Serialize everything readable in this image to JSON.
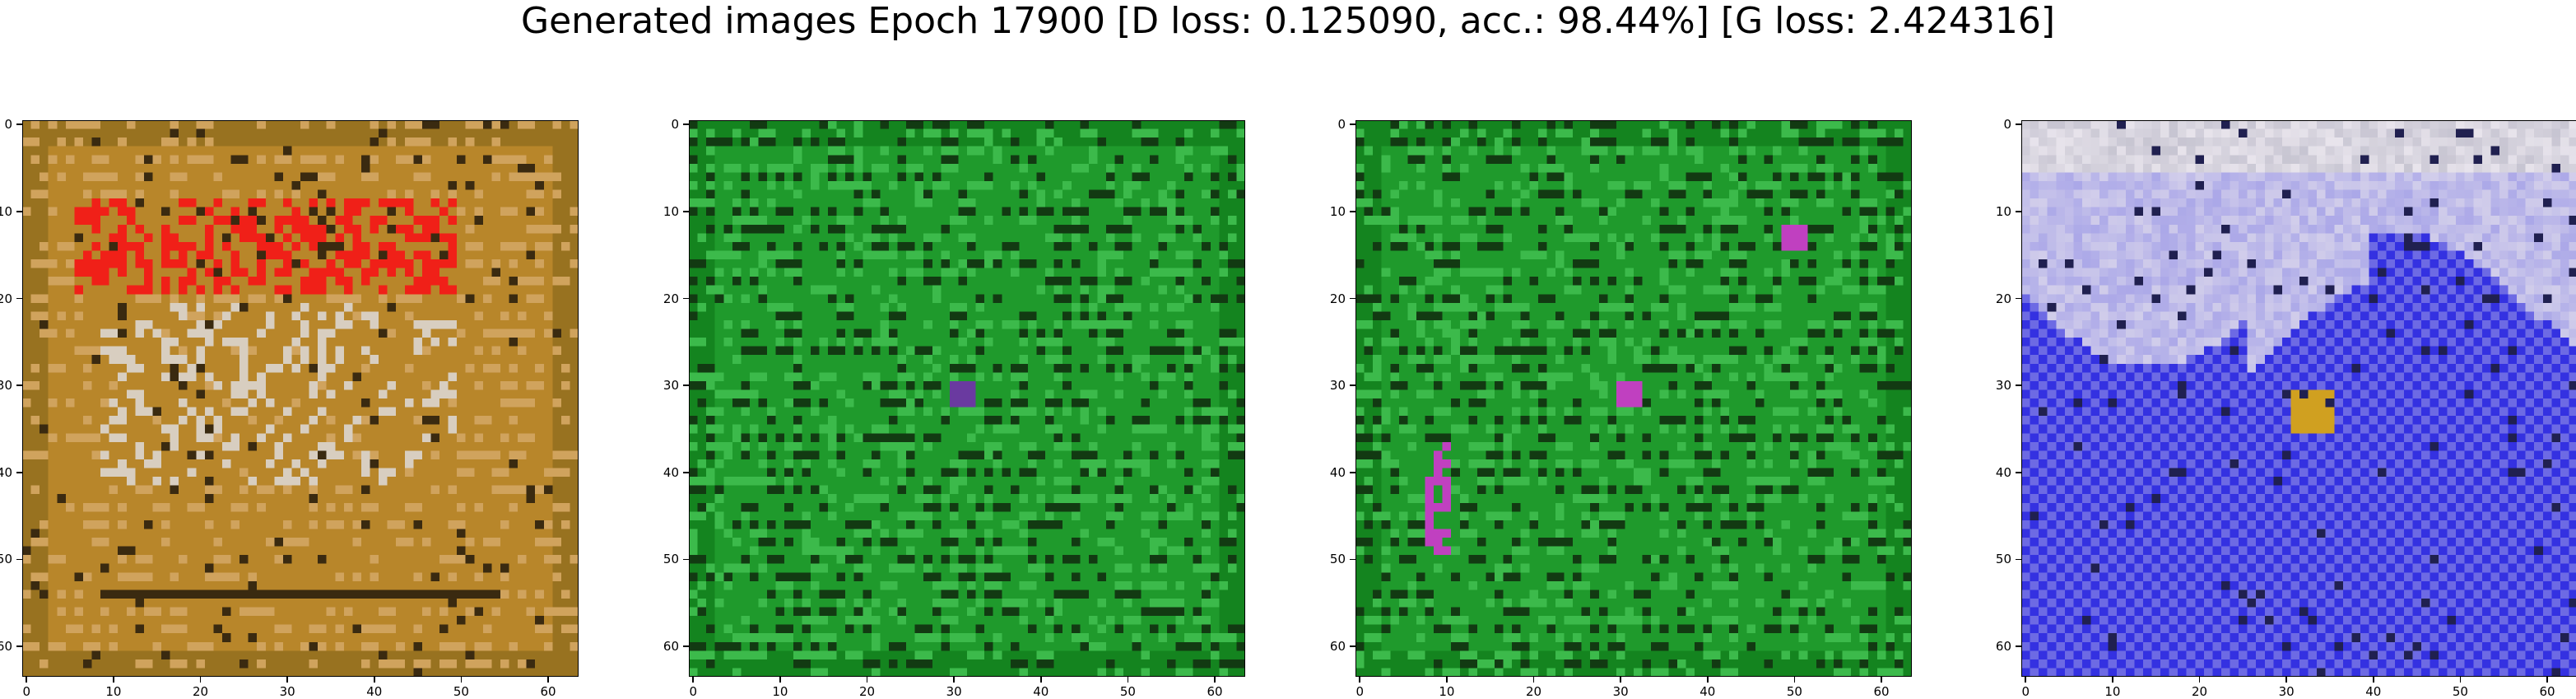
{
  "figure": {
    "title": "Generated images Epoch 17900 [D loss: 0.125090, acc.: 98.44%] [G loss: 2.424316]"
  },
  "chart_data": [
    {
      "type": "heatmap",
      "description": "generated image 1 (orange/brown with red blotches)",
      "palette": {
        "base": "#b8862a",
        "border": "#8a6a1c",
        "accent": "#f02018",
        "light": "#e8c090",
        "dark": "#3a2a10"
      },
      "xlim": [
        -0.5,
        63.5
      ],
      "ylim": [
        63.5,
        -0.5
      ],
      "xticks": [
        0,
        10,
        20,
        30,
        40,
        50,
        60
      ],
      "yticks": [
        0,
        10,
        20,
        30,
        40,
        50,
        60
      ],
      "grid": false
    },
    {
      "type": "heatmap",
      "description": "generated image 2 (green with dark horizontal streaks)",
      "palette": {
        "base": "#1f9a2c",
        "border": "#0f7a1a",
        "accent": "#6a3aa0",
        "light": "#50d060",
        "dark": "#123a12"
      },
      "xlim": [
        -0.5,
        63.5
      ],
      "ylim": [
        63.5,
        -0.5
      ],
      "xticks": [
        0,
        10,
        20,
        30,
        40,
        50,
        60
      ],
      "yticks": [
        0,
        10,
        20,
        30,
        40,
        50,
        60
      ],
      "grid": false
    },
    {
      "type": "heatmap",
      "description": "generated image 3 (green with dark streaks, magenta spots)",
      "palette": {
        "base": "#1f9a2c",
        "border": "#0f7a1a",
        "accent": "#c040c0",
        "light": "#50d060",
        "dark": "#123a12"
      },
      "xlim": [
        -0.5,
        63.5
      ],
      "ylim": [
        63.5,
        -0.5
      ],
      "xticks": [
        0,
        10,
        20,
        30,
        40,
        50,
        60
      ],
      "yticks": [
        0,
        10,
        20,
        30,
        40,
        50,
        60
      ],
      "grid": false
    },
    {
      "type": "heatmap",
      "description": "generated image 4 (white/grey top, blue bottom)",
      "palette": {
        "base": "#2a28e0",
        "border": "#5a58d0",
        "accent": "#d0a020",
        "light": "#e8e4ec",
        "dark": "#202050"
      },
      "xlim": [
        -0.5,
        63.5
      ],
      "ylim": [
        63.5,
        -0.5
      ],
      "xticks": [
        0,
        10,
        20,
        30,
        40,
        50,
        60
      ],
      "yticks": [
        0,
        10,
        20,
        30,
        40,
        50,
        60
      ],
      "grid": false
    }
  ]
}
